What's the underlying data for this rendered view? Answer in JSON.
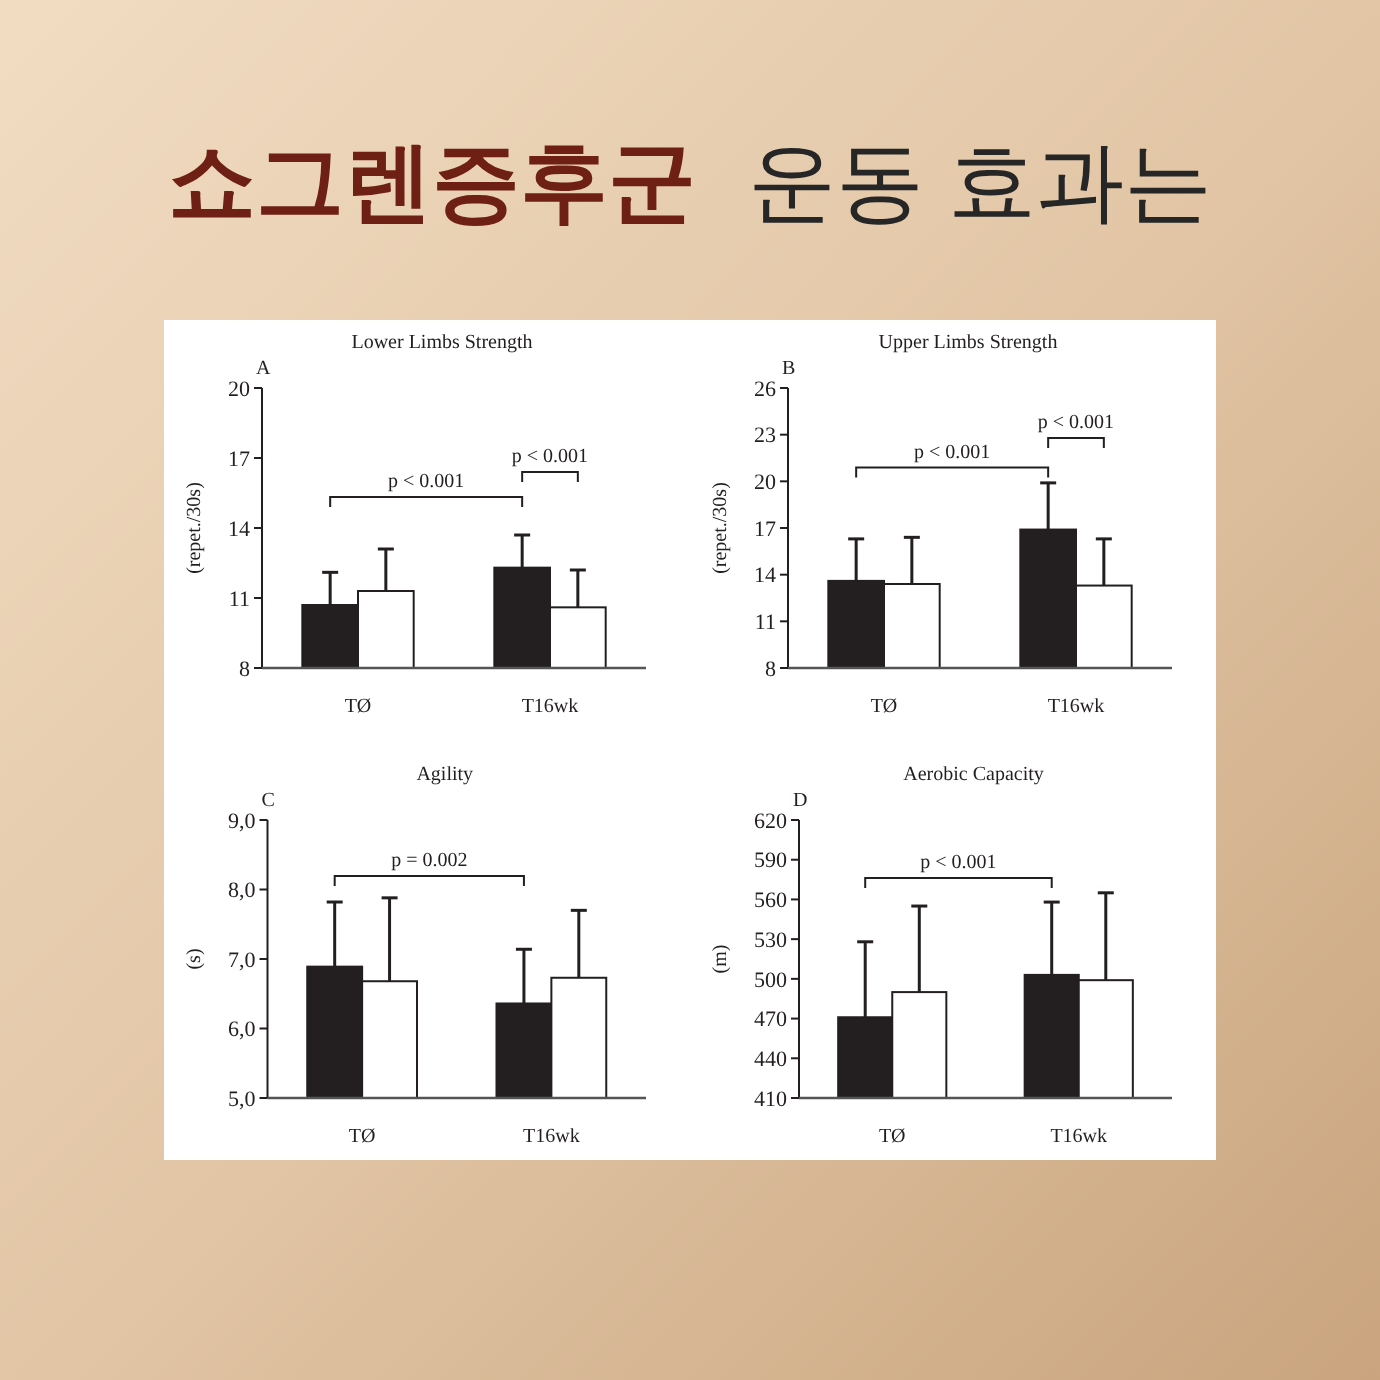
{
  "chart_data": [
    {
      "type": "other",
      "title": "쇼그렌증후군 운동 효과는"
    },
    {
      "type": "bar",
      "title": "Lower Limbs Strength",
      "subtitle": "A",
      "ylabel": "(repet./30s)",
      "categories": [
        "TØ",
        "T16wk"
      ],
      "ylim": [
        8,
        20
      ],
      "yticks": [
        8,
        11,
        14,
        17,
        20
      ],
      "series": [
        {
          "color": "#231f20",
          "values": [
            10.7,
            12.3
          ],
          "errors": [
            [
              10.7,
              12.1
            ],
            [
              12.3,
              13.7
            ]
          ]
        },
        {
          "color": "#ffffff",
          "values": [
            11.3,
            10.6
          ],
          "errors": [
            [
              11.3,
              13.1
            ],
            [
              10.6,
              12.2
            ]
          ]
        }
      ],
      "annotations": [
        "p < 0.001",
        "p < 0.001"
      ]
    },
    {
      "type": "bar",
      "title": "Upper Limbs Strength",
      "subtitle": "B",
      "ylabel": "(repet./30s)",
      "categories": [
        "TØ",
        "T16wk"
      ],
      "ylim": [
        8,
        26
      ],
      "yticks": [
        8,
        11,
        14,
        17,
        20,
        23,
        26
      ],
      "series": [
        {
          "color": "#231f20",
          "values": [
            13.6,
            16.9
          ],
          "errors": [
            [
              13.6,
              16.3
            ],
            [
              16.9,
              19.9
            ]
          ]
        },
        {
          "color": "#ffffff",
          "values": [
            13.4,
            13.3
          ],
          "errors": [
            [
              13.4,
              16.4
            ],
            [
              13.3,
              16.3
            ]
          ]
        }
      ],
      "annotations": [
        "p < 0.001",
        "p < 0.001"
      ]
    },
    {
      "type": "bar",
      "title": "Agility",
      "subtitle": "C",
      "ylabel": "(s)",
      "categories": [
        "TØ",
        "T16wk"
      ],
      "ylim": [
        5,
        9
      ],
      "yticks": [
        {
          "value": 5,
          "label": "5,0"
        },
        {
          "value": 6,
          "label": "6,0"
        },
        {
          "value": 7,
          "label": "7,0"
        },
        {
          "value": 8,
          "label": "8,0"
        },
        {
          "value": 9,
          "label": "9,0"
        }
      ],
      "series": [
        {
          "color": "#231f20",
          "values": [
            6.89,
            6.36
          ],
          "errors": [
            [
              6.89,
              7.82
            ],
            [
              6.36,
              7.14
            ]
          ]
        },
        {
          "color": "#ffffff",
          "values": [
            6.68,
            6.73
          ],
          "errors": [
            [
              6.68,
              7.88
            ],
            [
              6.73,
              7.7
            ]
          ]
        }
      ],
      "annotations": [
        "p = 0.002"
      ]
    },
    {
      "type": "bar",
      "title": "Aerobic Capacity",
      "subtitle": "D",
      "ylabel": "(m)",
      "categories": [
        "TØ",
        "T16wk"
      ],
      "ylim": [
        410,
        620
      ],
      "yticks": [
        410,
        440,
        470,
        500,
        530,
        560,
        590,
        620
      ],
      "series": [
        {
          "color": "#231f20",
          "values": [
            471,
            503
          ],
          "errors": [
            [
              471,
              528
            ],
            [
              503,
              558
            ]
          ]
        },
        {
          "color": "#ffffff",
          "values": [
            490,
            499
          ],
          "errors": [
            [
              490,
              555
            ],
            [
              499,
              565
            ]
          ]
        }
      ],
      "annotations": [
        "p < 0.001"
      ]
    }
  ]
}
